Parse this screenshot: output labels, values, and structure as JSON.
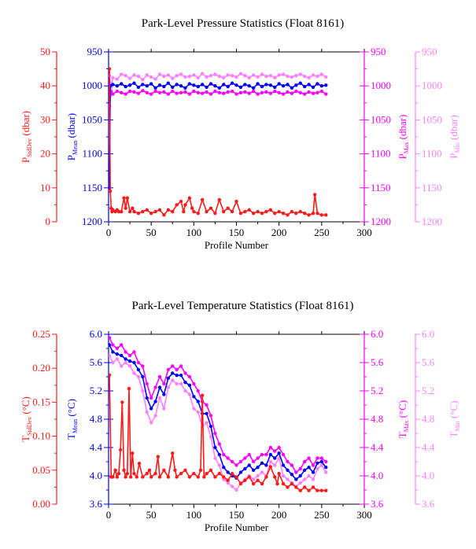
{
  "colors": {
    "stddev": "#ff1a1a",
    "mean": "#0000ff",
    "max": "#ff00ff",
    "min": "#ff80ff",
    "axis_black": "#000000"
  },
  "chart_data": [
    {
      "type": "line",
      "title": "Park-Level Pressure Statistics (Float 8161)",
      "xlabel": "Profile Number",
      "xlim": [
        0,
        300
      ],
      "x_ticks": [
        "0",
        "50",
        "100",
        "150",
        "200",
        "250",
        "300"
      ],
      "axes": {
        "stddev": {
          "label_main": "P",
          "label_sub": "StdDev",
          "label_unit": " (dbar)",
          "ticks": [
            "0",
            "10",
            "20",
            "30",
            "40",
            "50"
          ],
          "ylim": [
            0,
            50
          ]
        },
        "mean": {
          "label_main": "P",
          "label_sub": "Mean",
          "label_unit": " (dbar)",
          "ticks": [
            "1200",
            "1150",
            "1100",
            "1050",
            "1000",
            "950"
          ],
          "ylim": [
            1200,
            950
          ]
        },
        "max": {
          "label_main": "P",
          "label_sub": "Max",
          "label_unit": " (dbar)",
          "ticks": [
            "1200",
            "1150",
            "1100",
            "1050",
            "1000",
            "950"
          ],
          "ylim": [
            1200,
            950
          ]
        },
        "min": {
          "label_main": "P",
          "label_sub": "Min",
          "label_unit": " (dbar)",
          "ticks": [
            "1200",
            "1150",
            "1100",
            "1050",
            "1000",
            "950"
          ],
          "ylim": [
            1200,
            950
          ]
        }
      },
      "series": [
        {
          "key": "min",
          "x": [
            1,
            3,
            5,
            10,
            15,
            20,
            25,
            30,
            35,
            40,
            45,
            50,
            55,
            60,
            65,
            70,
            75,
            80,
            85,
            90,
            95,
            100,
            105,
            110,
            115,
            120,
            125,
            130,
            135,
            140,
            145,
            150,
            155,
            160,
            165,
            170,
            175,
            180,
            185,
            190,
            195,
            200,
            205,
            210,
            215,
            220,
            225,
            230,
            235,
            240,
            245,
            250,
            255
          ],
          "y": [
            985,
            1002,
            988,
            990,
            983,
            985,
            989,
            984,
            986,
            991,
            984,
            987,
            990,
            983,
            986,
            984,
            989,
            985,
            983,
            987,
            986,
            984,
            988,
            982,
            987,
            985,
            983,
            986,
            988,
            984,
            985,
            987,
            982,
            985,
            988,
            984,
            987,
            983,
            986,
            985,
            988,
            984,
            983,
            986,
            987,
            985,
            983,
            986,
            988,
            984,
            986,
            983,
            987
          ]
        },
        {
          "key": "max",
          "x": [
            1,
            3,
            5,
            10,
            15,
            20,
            25,
            30,
            35,
            40,
            45,
            50,
            55,
            60,
            65,
            70,
            75,
            80,
            85,
            90,
            95,
            100,
            105,
            110,
            115,
            120,
            125,
            130,
            135,
            140,
            145,
            150,
            155,
            160,
            165,
            170,
            175,
            180,
            185,
            190,
            195,
            200,
            205,
            210,
            215,
            220,
            225,
            230,
            235,
            240,
            245,
            250,
            255
          ],
          "y": [
            1030,
            1008,
            1012,
            1008,
            1010,
            1012,
            1008,
            1009,
            1011,
            1007,
            1010,
            1012,
            1008,
            1010,
            1009,
            1012,
            1008,
            1011,
            1010,
            1009,
            1012,
            1008,
            1010,
            1011,
            1009,
            1012,
            1008,
            1010,
            1011,
            1009,
            1008,
            1012,
            1010,
            1009,
            1011,
            1008,
            1012,
            1010,
            1009,
            1011,
            1008,
            1010,
            1012,
            1009,
            1011,
            1008,
            1010,
            1012,
            1009,
            1011,
            1010,
            1008,
            1012
          ]
        },
        {
          "key": "mean",
          "x": [
            1,
            2,
            5,
            10,
            15,
            20,
            25,
            30,
            35,
            40,
            45,
            50,
            55,
            60,
            65,
            70,
            75,
            80,
            85,
            90,
            95,
            100,
            105,
            110,
            115,
            120,
            125,
            130,
            135,
            140,
            145,
            150,
            155,
            160,
            165,
            170,
            175,
            180,
            185,
            190,
            195,
            200,
            205,
            210,
            215,
            220,
            225,
            230,
            235,
            240,
            245,
            250,
            255
          ],
          "y": [
            1150,
            1000,
            998,
            1000,
            997,
            1001,
            999,
            996,
            1002,
            998,
            1000,
            997,
            1003,
            999,
            1001,
            996,
            1002,
            998,
            1000,
            1003,
            997,
            999,
            1001,
            998,
            1002,
            997,
            1000,
            1003,
            998,
            1001,
            996,
            999,
            1002,
            998,
            1000,
            1003,
            997,
            1001,
            998,
            999,
            1002,
            997,
            1000,
            998,
            1003,
            999,
            996,
            1001,
            998,
            1002,
            997,
            1000,
            999
          ]
        },
        {
          "key": "stddev",
          "x": [
            1,
            2,
            3,
            4,
            5,
            8,
            10,
            12,
            15,
            18,
            20,
            22,
            25,
            28,
            30,
            35,
            40,
            45,
            50,
            55,
            60,
            65,
            70,
            75,
            80,
            85,
            88,
            90,
            95,
            98,
            100,
            105,
            110,
            115,
            120,
            125,
            130,
            135,
            140,
            145,
            150,
            155,
            160,
            165,
            170,
            175,
            180,
            185,
            190,
            195,
            200,
            205,
            210,
            215,
            220,
            225,
            230,
            235,
            240,
            242,
            245,
            250,
            255
          ],
          "y": [
            45,
            9,
            4,
            3,
            3.5,
            3,
            3.5,
            3,
            3,
            7,
            4,
            7,
            3,
            4,
            3,
            2.5,
            3,
            3.5,
            2.5,
            3,
            3.5,
            2,
            3.5,
            3,
            5,
            6,
            3,
            5,
            7,
            4,
            3,
            2.5,
            6.5,
            3,
            4,
            2.5,
            6.5,
            3,
            4,
            3,
            6,
            2.5,
            3,
            3.5,
            2.5,
            3,
            2.5,
            3,
            3.5,
            2.5,
            3,
            2.5,
            2,
            3,
            2.5,
            3,
            2.5,
            2,
            2.5,
            8,
            2.5,
            2,
            2
          ]
        }
      ]
    },
    {
      "type": "line",
      "title": "Park-Level Temperature Statistics (Float 8161)",
      "xlabel": "Profile Number",
      "xlim": [
        0,
        300
      ],
      "x_ticks": [
        "0",
        "50",
        "100",
        "150",
        "200",
        "250",
        "300"
      ],
      "axes": {
        "stddev": {
          "label_main": "T",
          "label_sub": "StdDev",
          "label_unit": " (°C)",
          "ticks": [
            "0.00",
            "0.05",
            "0.10",
            "0.15",
            "0.20",
            "0.25"
          ],
          "ylim": [
            0,
            0.25
          ]
        },
        "mean": {
          "label_main": "T",
          "label_sub": "Mean",
          "label_unit": " (°C)",
          "ticks": [
            "3.6",
            "4.0",
            "4.4",
            "4.8",
            "5.2",
            "5.6",
            "6.0"
          ],
          "ylim": [
            3.6,
            6.0
          ]
        },
        "max": {
          "label_main": "T",
          "label_sub": "Max",
          "label_unit": " (°C)",
          "ticks": [
            "3.6",
            "4.0",
            "4.4",
            "4.8",
            "5.2",
            "5.6",
            "6.0"
          ],
          "ylim": [
            3.6,
            6.0
          ]
        },
        "min": {
          "label_main": "T",
          "label_sub": "Min",
          "label_unit": " (°C)",
          "ticks": [
            "3.6",
            "4.0",
            "4.4",
            "4.8",
            "5.2",
            "5.6",
            "6.0"
          ],
          "ylim": [
            3.6,
            6.0
          ]
        }
      },
      "series": [
        {
          "key": "min",
          "x": [
            1,
            5,
            10,
            15,
            20,
            25,
            30,
            35,
            40,
            45,
            50,
            55,
            60,
            65,
            70,
            75,
            80,
            85,
            90,
            95,
            100,
            105,
            110,
            115,
            120,
            125,
            130,
            135,
            140,
            145,
            150,
            155,
            160,
            165,
            170,
            175,
            180,
            185,
            190,
            195,
            200,
            205,
            210,
            215,
            220,
            225,
            230,
            235,
            240,
            245,
            250,
            255
          ],
          "y": [
            5.7,
            5.6,
            5.65,
            5.55,
            5.6,
            5.55,
            5.45,
            5.4,
            5.2,
            4.9,
            4.75,
            4.85,
            5.1,
            4.95,
            5.25,
            5.35,
            5.3,
            5.3,
            5.2,
            5.15,
            4.95,
            4.9,
            4.7,
            4.75,
            4.55,
            4.25,
            4.15,
            3.95,
            3.9,
            3.85,
            3.8,
            3.9,
            3.95,
            4.0,
            3.95,
            4.0,
            4.05,
            4.0,
            4.2,
            4.15,
            4.25,
            4.0,
            3.95,
            3.9,
            3.85,
            3.9,
            3.95,
            4.0,
            3.95,
            4.1,
            4.15,
            4.05
          ]
        },
        {
          "key": "max",
          "x": [
            1,
            5,
            10,
            15,
            20,
            25,
            30,
            35,
            40,
            45,
            50,
            55,
            60,
            65,
            70,
            75,
            80,
            85,
            90,
            95,
            100,
            105,
            110,
            115,
            120,
            125,
            130,
            135,
            140,
            145,
            150,
            155,
            160,
            165,
            170,
            175,
            180,
            185,
            190,
            195,
            200,
            205,
            210,
            215,
            220,
            225,
            230,
            235,
            240,
            245,
            250,
            255
          ],
          "y": [
            5.95,
            5.85,
            5.8,
            5.85,
            5.75,
            5.7,
            5.75,
            5.6,
            5.55,
            5.3,
            5.1,
            5.25,
            5.4,
            5.3,
            5.5,
            5.55,
            5.5,
            5.55,
            5.45,
            5.4,
            5.3,
            5.2,
            5.05,
            5.0,
            4.85,
            4.6,
            4.45,
            4.3,
            4.25,
            4.2,
            4.15,
            4.2,
            4.25,
            4.3,
            4.2,
            4.25,
            4.3,
            4.3,
            4.4,
            4.35,
            4.4,
            4.3,
            4.2,
            4.15,
            4.05,
            4.1,
            4.2,
            4.25,
            4.15,
            4.25,
            4.25,
            4.2
          ]
        },
        {
          "key": "mean",
          "x": [
            1,
            5,
            10,
            15,
            20,
            25,
            30,
            35,
            40,
            45,
            50,
            55,
            60,
            65,
            70,
            75,
            80,
            85,
            90,
            95,
            100,
            105,
            110,
            115,
            120,
            125,
            130,
            135,
            140,
            145,
            150,
            155,
            160,
            165,
            170,
            175,
            180,
            185,
            190,
            195,
            200,
            205,
            210,
            215,
            220,
            225,
            230,
            235,
            240,
            245,
            250,
            255
          ],
          "y": [
            5.85,
            5.75,
            5.72,
            5.7,
            5.65,
            5.62,
            5.6,
            5.5,
            5.4,
            5.1,
            4.95,
            5.05,
            5.25,
            5.15,
            5.38,
            5.45,
            5.42,
            5.42,
            5.32,
            5.28,
            5.12,
            5.05,
            4.88,
            4.88,
            4.7,
            4.4,
            4.3,
            4.12,
            4.05,
            4.0,
            3.97,
            4.05,
            4.1,
            4.15,
            4.08,
            4.12,
            4.18,
            4.15,
            4.3,
            4.25,
            4.32,
            4.15,
            4.08,
            4.02,
            3.95,
            4.0,
            4.08,
            4.12,
            4.05,
            4.18,
            4.2,
            4.12
          ]
        },
        {
          "key": "stddev",
          "x": [
            1,
            3,
            5,
            8,
            10,
            12,
            14,
            16,
            18,
            20,
            22,
            24,
            26,
            28,
            30,
            33,
            36,
            40,
            45,
            48,
            50,
            55,
            58,
            60,
            65,
            70,
            75,
            78,
            80,
            85,
            90,
            95,
            100,
            105,
            108,
            110,
            112,
            115,
            120,
            125,
            130,
            135,
            140,
            145,
            150,
            155,
            160,
            165,
            170,
            175,
            180,
            185,
            190,
            195,
            198,
            200,
            205,
            210,
            215,
            220,
            225,
            230,
            235,
            240,
            245,
            250,
            255
          ],
          "y": [
            0.19,
            0.04,
            0.04,
            0.05,
            0.04,
            0.045,
            0.08,
            0.15,
            0.05,
            0.04,
            0.045,
            0.17,
            0.04,
            0.075,
            0.045,
            0.04,
            0.06,
            0.04,
            0.045,
            0.05,
            0.04,
            0.045,
            0.07,
            0.04,
            0.05,
            0.04,
            0.075,
            0.05,
            0.04,
            0.045,
            0.05,
            0.04,
            0.045,
            0.04,
            0.05,
            0.16,
            0.04,
            0.045,
            0.05,
            0.04,
            0.045,
            0.04,
            0.035,
            0.045,
            0.04,
            0.03,
            0.035,
            0.04,
            0.03,
            0.035,
            0.03,
            0.04,
            0.055,
            0.04,
            0.03,
            0.045,
            0.03,
            0.025,
            0.03,
            0.025,
            0.02,
            0.025,
            0.02,
            0.025,
            0.02,
            0.02,
            0.02
          ]
        }
      ]
    }
  ]
}
